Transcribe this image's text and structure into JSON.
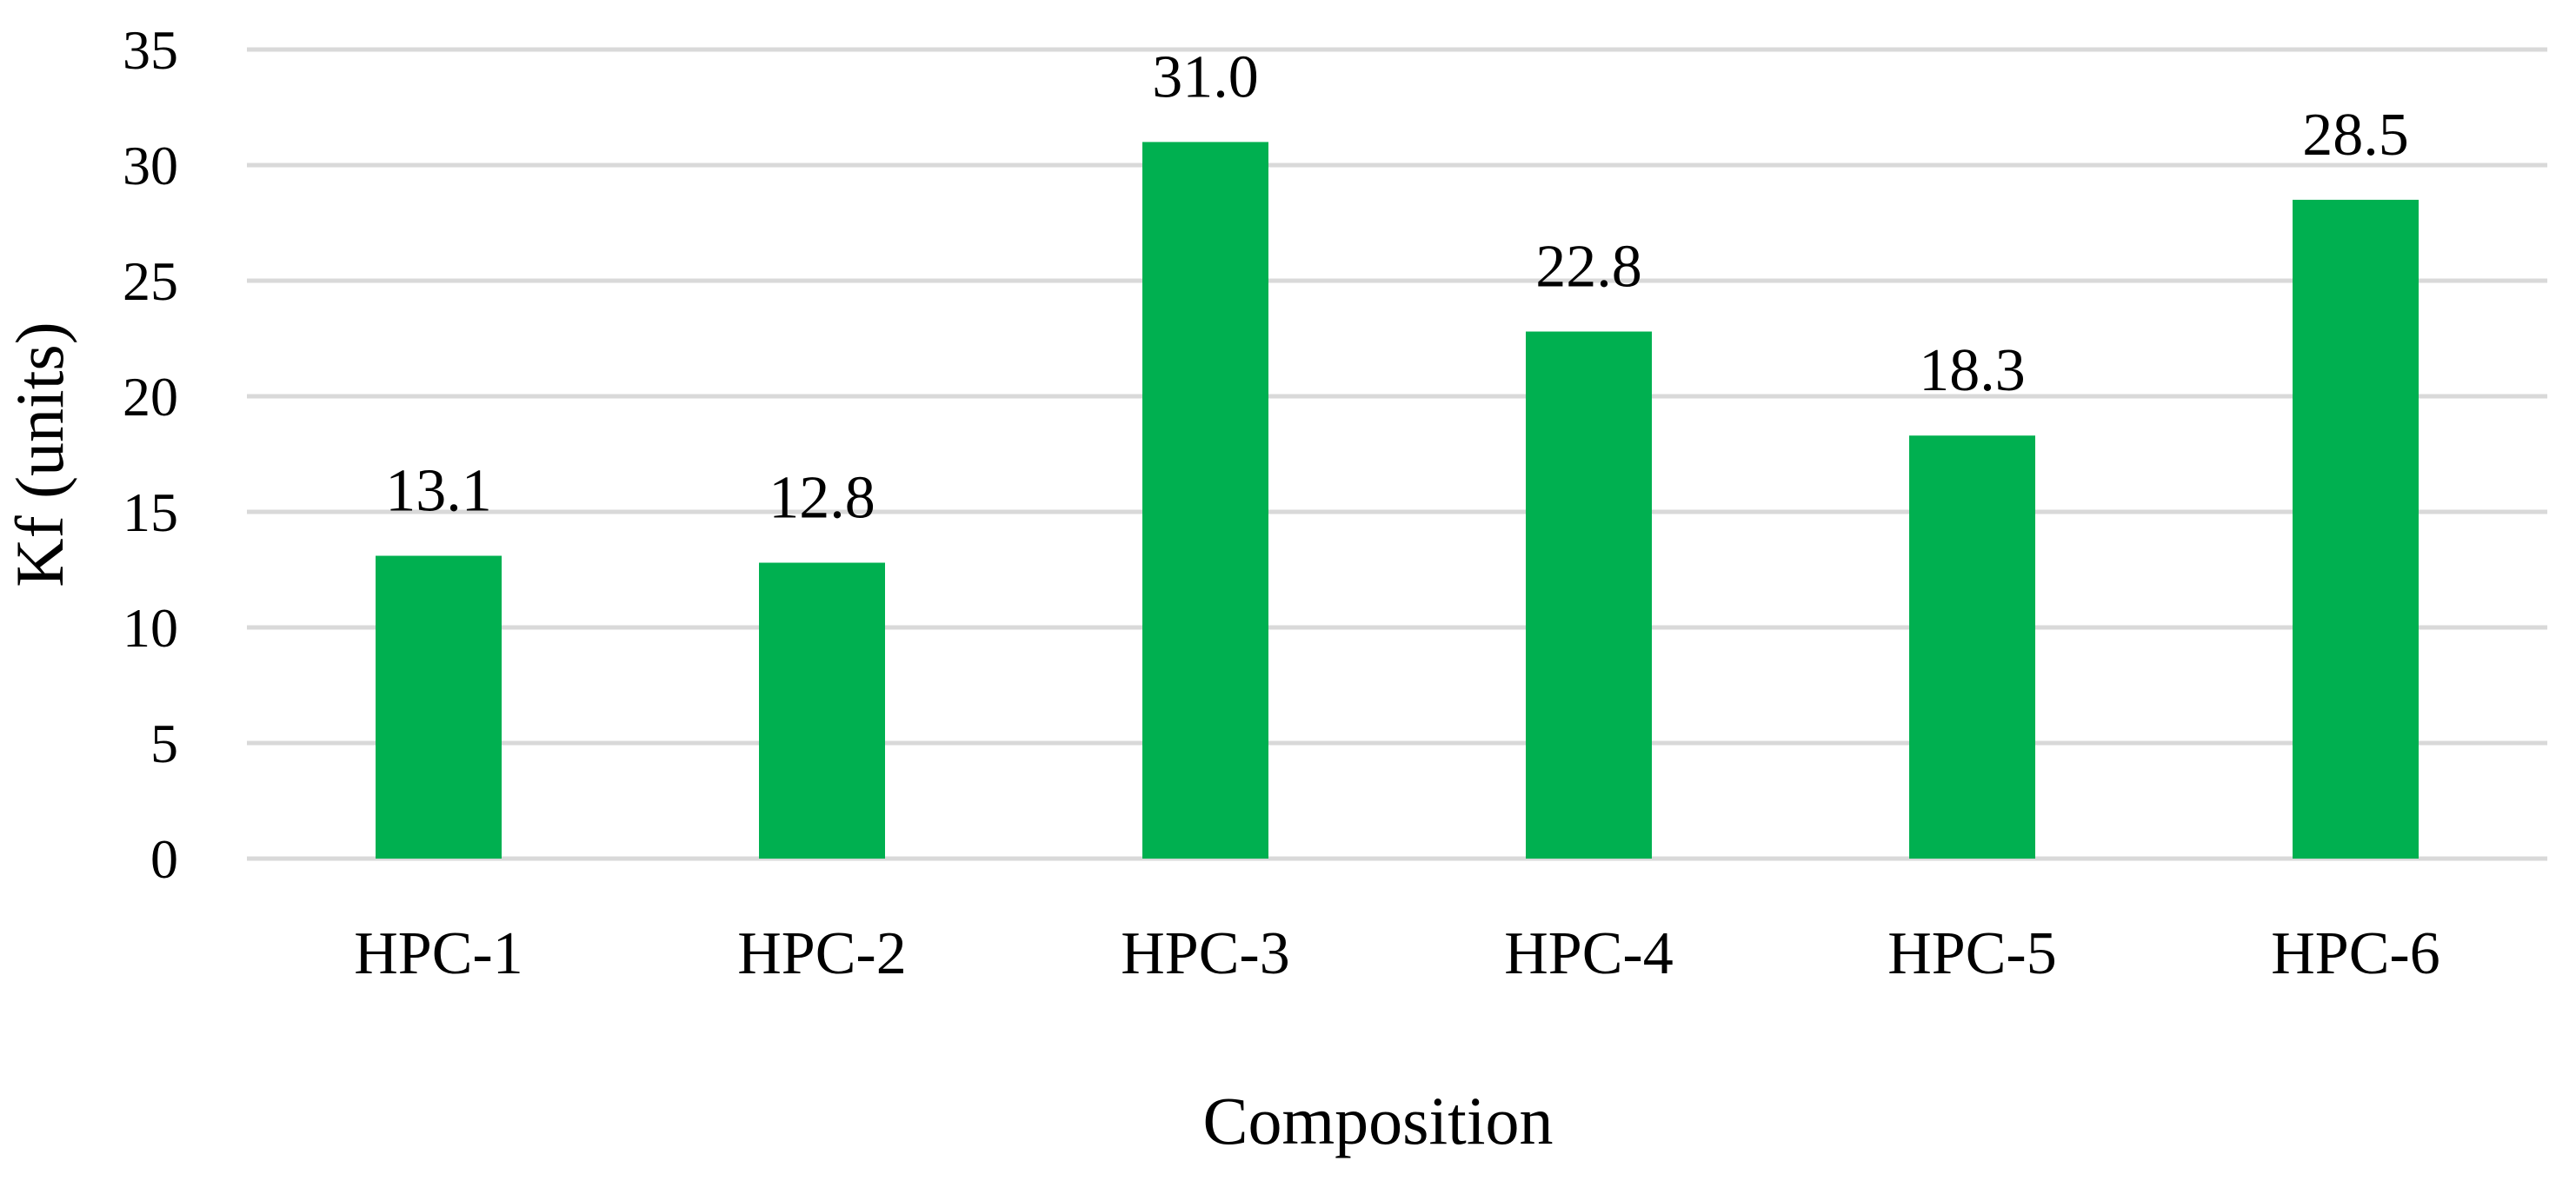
{
  "chart_data": {
    "type": "bar",
    "title": "",
    "xlabel": "Composition",
    "ylabel": "Kf (units)",
    "categories": [
      "HPC-1",
      "HPC-2",
      "HPC-3",
      "HPC-4",
      "HPC-5",
      "HPC-6"
    ],
    "values": [
      13.1,
      12.8,
      31.0,
      22.8,
      18.3,
      28.5
    ],
    "data_labels": [
      "13.1",
      "12.8",
      "31.0",
      "22.8",
      "18.3",
      "28.5"
    ],
    "ylim": [
      0,
      35
    ],
    "yticks": [
      "0",
      "5",
      "10",
      "15",
      "20",
      "25",
      "30",
      "35"
    ],
    "grid": true,
    "legend": "none",
    "bar_color": "#00b050",
    "grid_color": "#d9d9d9"
  }
}
